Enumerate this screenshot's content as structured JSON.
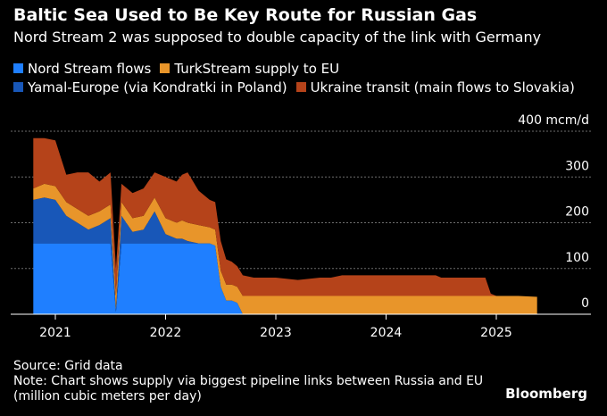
{
  "title": "Baltic Sea Used to Be Key Route for Russian Gas",
  "subtitle": "Nord Stream 2 was supposed to double capacity of the link with Germany",
  "source": "Source: Grid data",
  "note_line1": "Note: Chart shows supply via biggest pipeline links between Russia and EU",
  "note_line2": "(million cubic meters per day)",
  "brand": "Bloomberg",
  "chart_data": {
    "type": "area",
    "stacked": true,
    "x_unit": "year",
    "y_unit_label": "400 mcm/d",
    "ylim": [
      0,
      400
    ],
    "xlim": [
      2020.6,
      2025.9
    ],
    "y_ticks": [
      {
        "value": 400,
        "label": "400 mcm/d"
      },
      {
        "value": 300,
        "label": "300"
      },
      {
        "value": 200,
        "label": "200"
      },
      {
        "value": 100,
        "label": "100"
      },
      {
        "value": 0,
        "label": "0"
      }
    ],
    "x_ticks": [
      {
        "value": 2021,
        "label": "2021"
      },
      {
        "value": 2022,
        "label": "2022"
      },
      {
        "value": 2023,
        "label": "2023"
      },
      {
        "value": 2024,
        "label": "2024"
      },
      {
        "value": 2025,
        "label": "2025"
      }
    ],
    "grid": true,
    "legend_position": "top-left",
    "x": [
      2020.8,
      2020.9,
      2021.0,
      2021.1,
      2021.2,
      2021.3,
      2021.4,
      2021.5,
      2021.55,
      2021.6,
      2021.7,
      2021.8,
      2021.9,
      2022.0,
      2022.1,
      2022.15,
      2022.2,
      2022.3,
      2022.4,
      2022.45,
      2022.5,
      2022.55,
      2022.6,
      2022.65,
      2022.7,
      2022.8,
      2022.9,
      2023.0,
      2023.2,
      2023.4,
      2023.5,
      2023.6,
      2023.8,
      2024.0,
      2024.2,
      2024.4,
      2024.45,
      2024.5,
      2024.7,
      2024.9,
      2024.95,
      2025.0,
      2025.2,
      2025.37
    ],
    "series": [
      {
        "name": "Nord Stream flows",
        "color": "#1f7fff",
        "values": [
          155,
          155,
          155,
          155,
          155,
          155,
          155,
          155,
          5,
          155,
          155,
          155,
          155,
          155,
          155,
          155,
          155,
          155,
          155,
          150,
          60,
          30,
          30,
          25,
          0,
          0,
          0,
          0,
          0,
          0,
          0,
          0,
          0,
          0,
          0,
          0,
          0,
          0,
          0,
          0,
          0,
          0,
          0,
          0
        ]
      },
      {
        "name": "Yamal-Europe (via Kondratki in Poland)",
        "color": "#1857b8",
        "values": [
          95,
          100,
          95,
          60,
          45,
          30,
          40,
          55,
          5,
          60,
          25,
          30,
          70,
          20,
          10,
          10,
          5,
          0,
          0,
          0,
          0,
          0,
          0,
          0,
          0,
          0,
          0,
          0,
          0,
          0,
          0,
          0,
          0,
          0,
          0,
          0,
          0,
          0,
          0,
          0,
          0,
          0,
          0,
          0
        ]
      },
      {
        "name": "TurkStream supply to EU",
        "color": "#e8952a",
        "values": [
          25,
          30,
          30,
          30,
          30,
          30,
          30,
          30,
          30,
          30,
          30,
          30,
          30,
          35,
          35,
          40,
          40,
          40,
          35,
          35,
          35,
          35,
          35,
          35,
          40,
          40,
          40,
          40,
          40,
          40,
          40,
          40,
          40,
          40,
          40,
          40,
          40,
          40,
          40,
          40,
          40,
          40,
          40,
          38
        ]
      },
      {
        "name": "Ukraine transit (main flows to Slovakia)",
        "color": "#b5431a",
        "values": [
          110,
          100,
          100,
          60,
          80,
          95,
          65,
          70,
          60,
          40,
          55,
          60,
          55,
          90,
          90,
          100,
          110,
          75,
          60,
          60,
          65,
          55,
          50,
          45,
          45,
          40,
          40,
          40,
          35,
          40,
          40,
          45,
          45,
          45,
          45,
          45,
          45,
          40,
          40,
          40,
          5,
          0,
          0,
          0
        ]
      }
    ]
  }
}
